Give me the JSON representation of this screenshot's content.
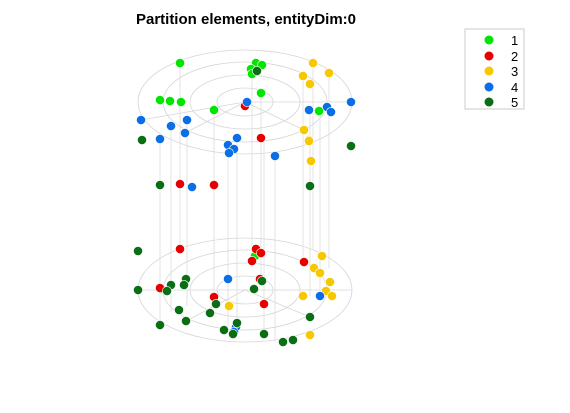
{
  "chart_data": {
    "type": "scatter",
    "title": "Partition elements, entityDim:0",
    "grid": false,
    "legend_position": "top-right",
    "series": [
      {
        "name": "1",
        "color": "#00e600",
        "points": [
          [
            180,
            63
          ],
          [
            256,
            63
          ],
          [
            262,
            65
          ],
          [
            251,
            69
          ],
          [
            252,
            74
          ],
          [
            160,
            100
          ],
          [
            170,
            101
          ],
          [
            181,
            102
          ],
          [
            214,
            110
          ],
          [
            261,
            93
          ],
          [
            319,
            111
          ],
          [
            255,
            256
          ],
          [
            161,
            289
          ]
        ]
      },
      {
        "name": "2",
        "color": "#e60000",
        "points": [
          [
            245,
            106
          ],
          [
            261,
            138
          ],
          [
            180,
            184
          ],
          [
            214,
            185
          ],
          [
            180,
            249
          ],
          [
            256,
            249
          ],
          [
            261,
            253
          ],
          [
            252,
            261
          ],
          [
            304,
            262
          ],
          [
            260,
            279
          ],
          [
            160,
            288
          ],
          [
            214,
            297
          ],
          [
            264,
            304
          ]
        ]
      },
      {
        "name": "3",
        "color": "#f7c800",
        "points": [
          [
            313,
            63
          ],
          [
            303,
            76
          ],
          [
            329,
            73
          ],
          [
            310,
            84
          ],
          [
            304,
            130
          ],
          [
            309,
            140
          ],
          [
            311,
            161
          ],
          [
            322,
            256
          ],
          [
            314,
            268
          ],
          [
            320,
            273
          ],
          [
            330,
            282
          ],
          [
            303,
            296
          ],
          [
            326,
            291
          ],
          [
            332,
            296
          ],
          [
            229,
            306
          ],
          [
            310,
            335
          ],
          [
            309,
            141
          ]
        ]
      },
      {
        "name": "4",
        "color": "#0a6ee6",
        "points": [
          [
            141,
            120
          ],
          [
            187,
            120
          ],
          [
            171,
            126
          ],
          [
            160,
            139
          ],
          [
            185,
            133
          ],
          [
            247,
            102
          ],
          [
            237,
            138
          ],
          [
            228,
            145
          ],
          [
            234,
            149
          ],
          [
            229,
            153
          ],
          [
            275,
            156
          ],
          [
            309,
            110
          ],
          [
            327,
            107
          ],
          [
            331,
            112
          ],
          [
            351,
            102
          ],
          [
            192,
            187
          ],
          [
            228,
            279
          ],
          [
            320,
            296
          ],
          [
            236,
            327
          ],
          [
            234,
            332
          ]
        ]
      },
      {
        "name": "5",
        "color": "#0a6e14",
        "points": [
          [
            142,
            140
          ],
          [
            257,
            71
          ],
          [
            351,
            146
          ],
          [
            160,
            185
          ],
          [
            310,
            186
          ],
          [
            138,
            251
          ],
          [
            186,
            279
          ],
          [
            171,
            285
          ],
          [
            184,
            285
          ],
          [
            167,
            291
          ],
          [
            138,
            290
          ],
          [
            216,
            304
          ],
          [
            179,
            310
          ],
          [
            210,
            313
          ],
          [
            186,
            321
          ],
          [
            160,
            325
          ],
          [
            237,
            323
          ],
          [
            224,
            330
          ],
          [
            233,
            334
          ],
          [
            264,
            334
          ],
          [
            293,
            340
          ],
          [
            283,
            342
          ],
          [
            310,
            317
          ],
          [
            254,
            289
          ],
          [
            262,
            281
          ]
        ]
      }
    ],
    "legend": [
      "1",
      "2",
      "3",
      "4",
      "5"
    ]
  }
}
